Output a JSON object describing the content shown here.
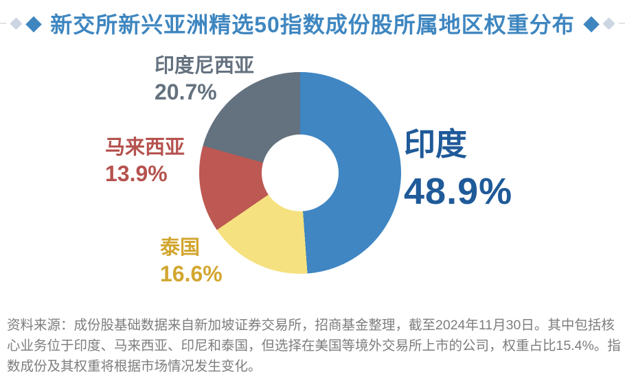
{
  "header": {
    "title": "新交所新兴亚洲精选50指数成份股所属地区权重分布",
    "diamond": "◆",
    "accent_color": "#3e86c0",
    "small_diamond_color": "#ccd6e3",
    "rule_color": "#e3e3e3"
  },
  "chart_data": {
    "type": "pie",
    "donut": true,
    "title": "新交所新兴亚洲精选50指数成份股所属地区权重分布",
    "start_angle_deg": 0,
    "direction": "clockwise",
    "categories": [
      "印度",
      "泰国",
      "马来西亚",
      "印度尼西亚"
    ],
    "values": [
      48.9,
      16.6,
      13.9,
      20.7
    ],
    "unit": "%",
    "colors": [
      "#3f86c3",
      "#f5e180",
      "#bd5853",
      "#64717f"
    ],
    "legend_position": "labels-around-chart"
  },
  "labels": {
    "india": {
      "name": "印度",
      "value": "48.9%",
      "color": "#1f5a99"
    },
    "indonesia": {
      "name": "印度尼西亚",
      "value": "20.7%",
      "color": "#64717f"
    },
    "malaysia": {
      "name": "马来西亚",
      "value": "13.9%",
      "color": "#b5524e"
    },
    "thailand": {
      "name": "泰国",
      "value": "16.6%",
      "color": "#d2a62f"
    }
  },
  "footnote": {
    "lines": [
      "资料来源：成份股基础数据来自新加坡证券交易所，招商基金整理，截至2024年11月30日。其中包括核",
      "心业务位于印度、马来西亚、印尼和泰国，但选择在美国等境外交易所上市的公司，权重占比15.4%。指",
      "数成份及其权重将根据市场情况发生变化。"
    ]
  }
}
